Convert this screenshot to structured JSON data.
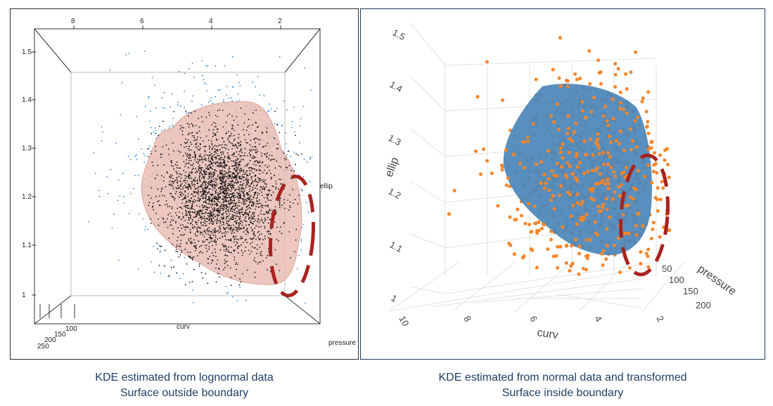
{
  "chart_data": [
    {
      "type": "scatter",
      "panel": "left",
      "caption_line1": "KDE estimated from lognormal data",
      "caption_line2": "Surface outside boundary",
      "axes": {
        "curv": {
          "label": "curv",
          "ticks": [
            "8",
            "6",
            "4",
            "2"
          ]
        },
        "ellip": {
          "label": "ellip",
          "ticks": [
            "1",
            "1.1",
            "1.2",
            "1.3",
            "1.4",
            "1.5"
          ]
        },
        "pressure": {
          "label": "pressure",
          "ticks": [
            "250",
            "200",
            "150",
            "100"
          ]
        }
      },
      "series": [
        {
          "point_color": "#2b8fe0"
        },
        {
          "point_color": "#111111"
        }
      ],
      "surface_color": "#e8b7ad",
      "highlight_color": "#a8231f"
    },
    {
      "type": "scatter",
      "panel": "right",
      "caption_line1": "KDE estimated from normal data and transformed",
      "caption_line2": "Surface inside boundary",
      "axes": {
        "curv": {
          "label": "curv",
          "ticks": [
            "10",
            "8",
            "6",
            "4",
            "2"
          ]
        },
        "ellip": {
          "label": "ellip",
          "ticks": [
            "1",
            "1.1",
            "1.2",
            "1.3",
            "1.4",
            "1.5"
          ]
        },
        "pressure": {
          "label": "pressure",
          "ticks": [
            "50",
            "100",
            "150",
            "200"
          ]
        }
      },
      "series": [
        {
          "point_color": "#f5852a"
        }
      ],
      "surface_color": "#4a86b8",
      "highlight_color": "#a8231f"
    }
  ]
}
